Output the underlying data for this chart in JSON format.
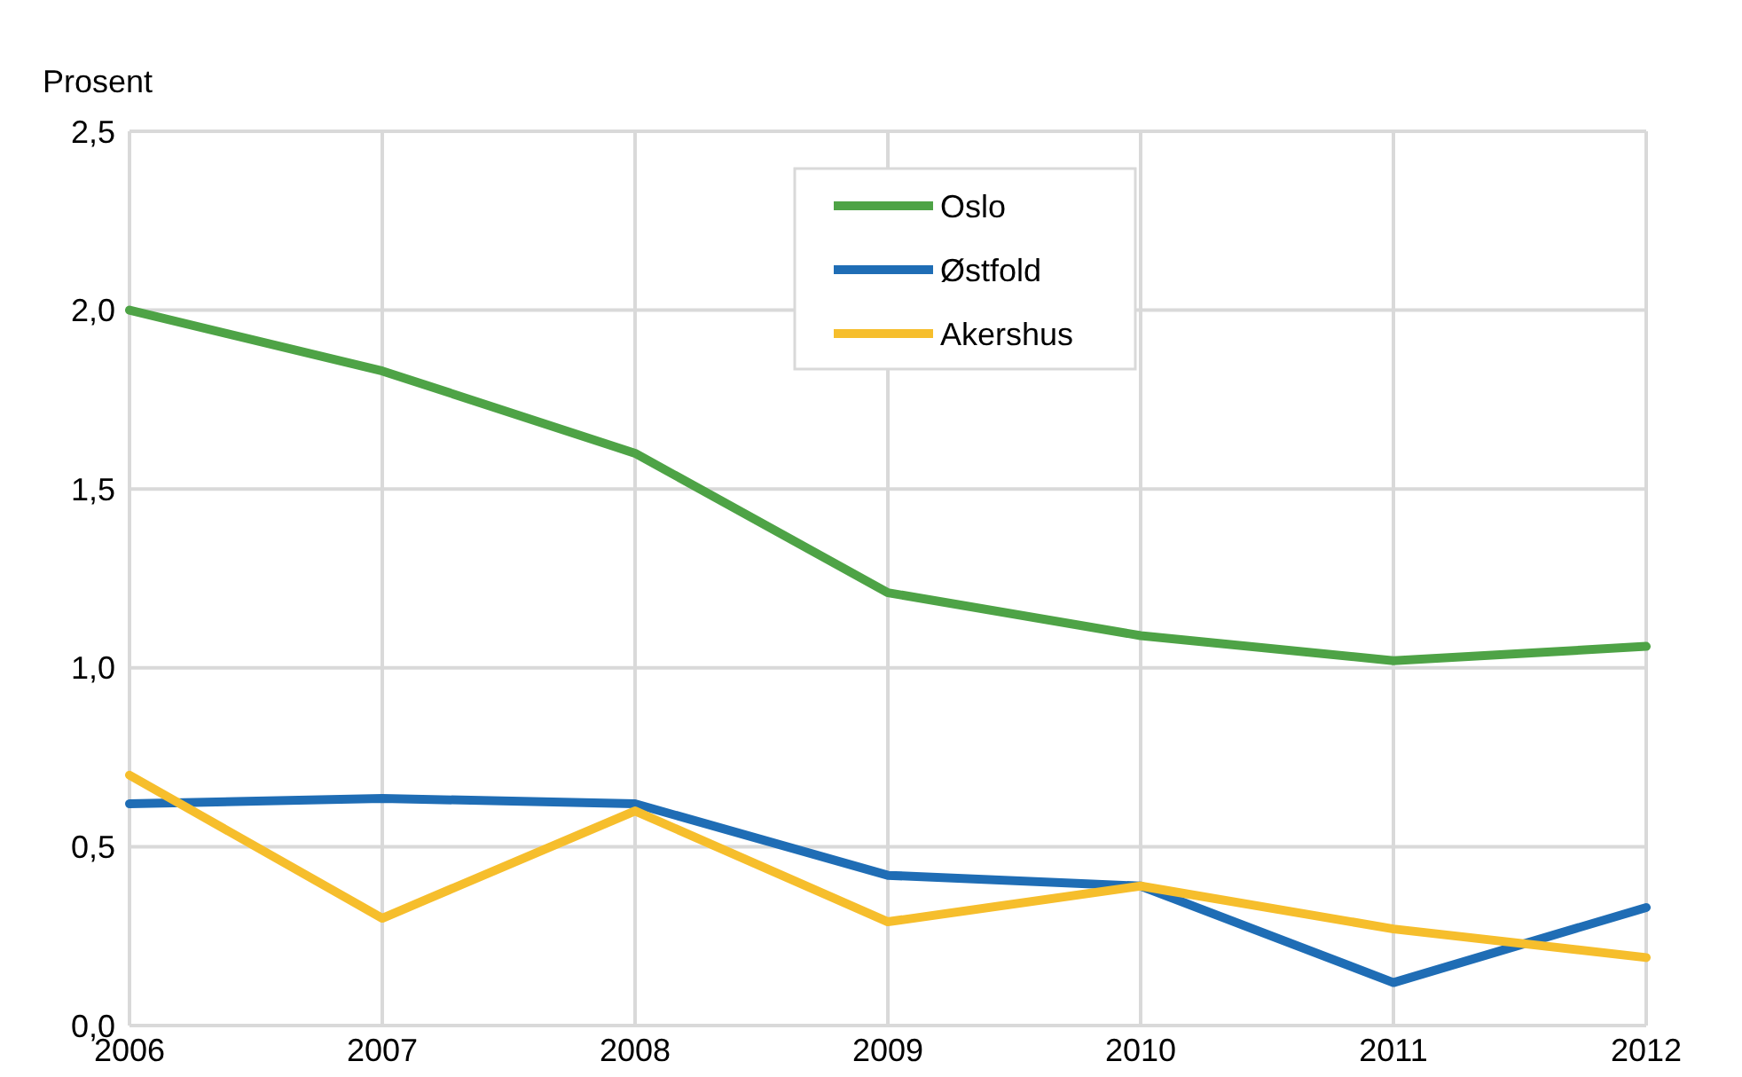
{
  "chart_data": {
    "type": "line",
    "ylabel": "Prosent",
    "x": [
      2006,
      2007,
      2008,
      2009,
      2010,
      2011,
      2012
    ],
    "xlim": [
      2006,
      2012
    ],
    "xticks": [
      2006,
      2007,
      2008,
      2009,
      2010,
      2011,
      2012
    ],
    "ylim": [
      0,
      2.5
    ],
    "yticks": [
      {
        "value": 0,
        "label": "0,0"
      },
      {
        "value": 0.5,
        "label": "0,5"
      },
      {
        "value": 1,
        "label": "1,0"
      },
      {
        "value": 1.5,
        "label": "1,5"
      },
      {
        "value": 2,
        "label": "2,0"
      },
      {
        "value": 2.5,
        "label": "2,5"
      }
    ],
    "grid": true,
    "legend": "top",
    "marker": "none",
    "line_style": "solid",
    "series": [
      {
        "name": "Oslo",
        "color": "#4ea346",
        "values": [
          2.0,
          1.83,
          1.6,
          1.21,
          1.09,
          1.02,
          1.06
        ]
      },
      {
        "name": "Østfold",
        "color": "#1f6db5",
        "values": [
          0.62,
          0.635,
          0.62,
          0.42,
          0.39,
          0.12,
          0.33
        ]
      },
      {
        "name": "Akershus",
        "color": "#f6be2c",
        "values": [
          0.7,
          0.3,
          0.6,
          0.29,
          0.39,
          0.27,
          0.19
        ]
      }
    ]
  }
}
